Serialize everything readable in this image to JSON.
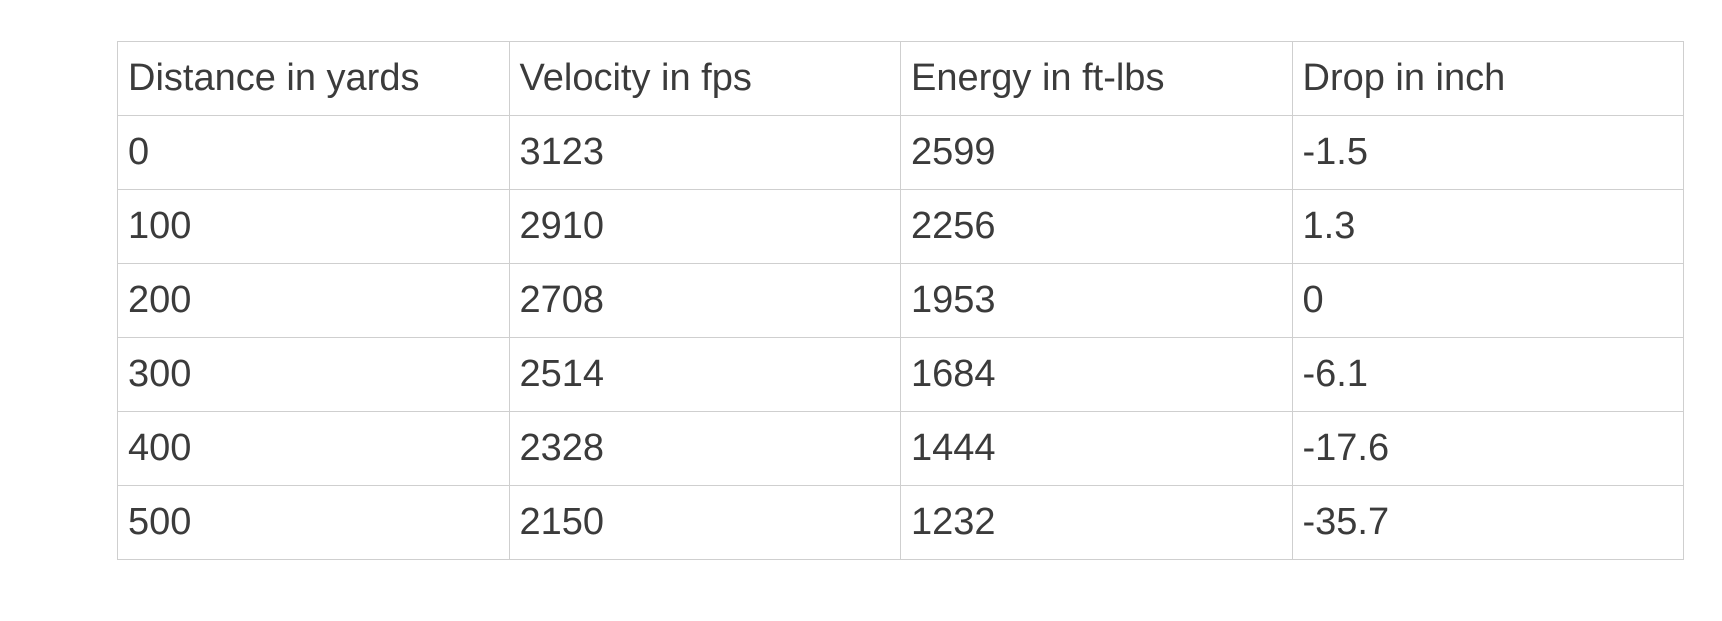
{
  "table": {
    "header": [
      "Distance in yards",
      "Velocity in fps",
      "Energy in ft-lbs",
      "Drop in inch"
    ],
    "rows": [
      [
        "0",
        "3123",
        "2599",
        "-1.5"
      ],
      [
        "100",
        "2910",
        "2256",
        "1.3"
      ],
      [
        "200",
        "2708",
        "1953",
        "0"
      ],
      [
        "300",
        "2514",
        "1684",
        "-6.1"
      ],
      [
        "400",
        "2328",
        "1444",
        "-17.6"
      ],
      [
        "500",
        "2150",
        "1232",
        "-35.7"
      ]
    ]
  }
}
